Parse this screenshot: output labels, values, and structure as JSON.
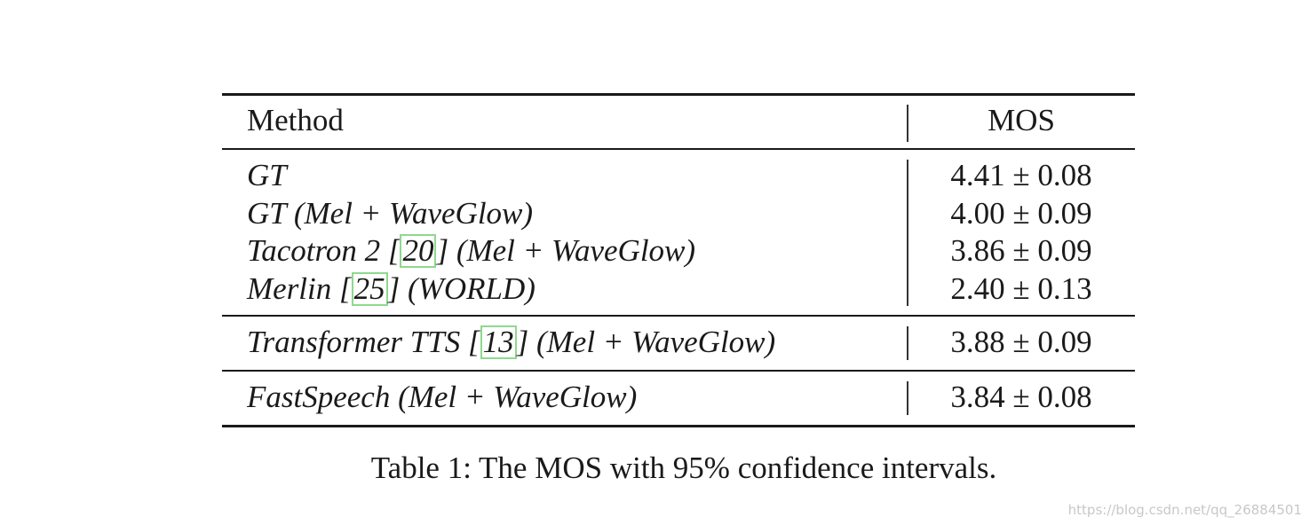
{
  "table": {
    "header": [
      "Method",
      "MOS"
    ],
    "groups": [
      {
        "rows": [
          {
            "method": "GT",
            "mos": "4.41 ± 0.08"
          },
          {
            "method": "GT (Mel + WaveGlow)",
            "mos": "4.00 ± 0.09"
          },
          {
            "before": "Tacotron 2 [",
            "cite": "20",
            "after": "] (Mel + WaveGlow)",
            "mos": "3.86 ± 0.09"
          },
          {
            "before": "Merlin [",
            "cite": "25",
            "after": "] (WORLD)",
            "mos": "2.40 ± 0.13"
          }
        ]
      },
      {
        "rows": [
          {
            "before": "Transformer TTS [",
            "cite": "13",
            "after": "] (Mel + WaveGlow)",
            "mos": "3.88 ± 0.09"
          }
        ]
      },
      {
        "rows": [
          {
            "method": "FastSpeech (Mel + WaveGlow)",
            "mos": "3.84 ± 0.08"
          }
        ]
      }
    ]
  },
  "caption": "Table 1: The MOS with 95% confidence intervals.",
  "watermark": "https://blog.csdn.net/qq_26884501"
}
